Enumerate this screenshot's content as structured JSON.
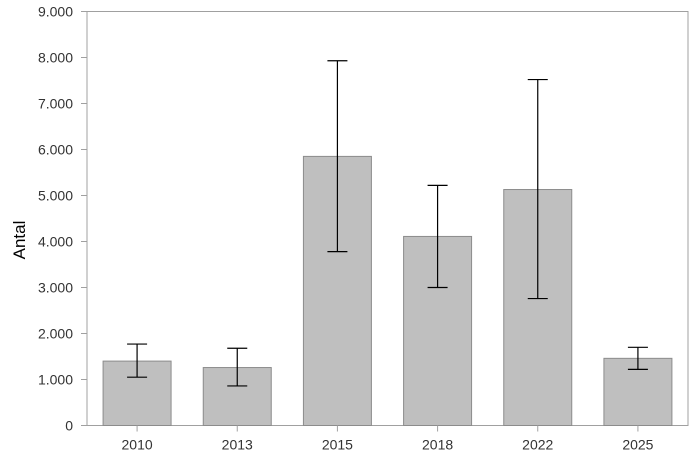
{
  "chart_data": {
    "type": "bar",
    "title": "",
    "xlabel": "",
    "ylabel": "Antal",
    "ylim": [
      0,
      9000
    ],
    "yticks": [
      0,
      1000,
      2000,
      3000,
      4000,
      5000,
      6000,
      7000,
      8000,
      9000
    ],
    "ytick_labels": [
      "0",
      "1.000",
      "2.000",
      "3.000",
      "4.000",
      "5.000",
      "6.000",
      "7.000",
      "8.000",
      "9.000"
    ],
    "categories": [
      "2010",
      "2013",
      "2015",
      "2018",
      "2022",
      "2025"
    ],
    "values": [
      1400,
      1260,
      5850,
      4110,
      5130,
      1460
    ],
    "error_low": [
      1050,
      860,
      3780,
      3000,
      2760,
      1220
    ],
    "error_high": [
      1770,
      1680,
      7930,
      5220,
      7520,
      1700
    ],
    "grid": false,
    "colors": {
      "bar": "#bfbfbf",
      "bar_edge": "#8c8c8c",
      "axis": "#a0a0a0",
      "error": "#000000"
    }
  }
}
